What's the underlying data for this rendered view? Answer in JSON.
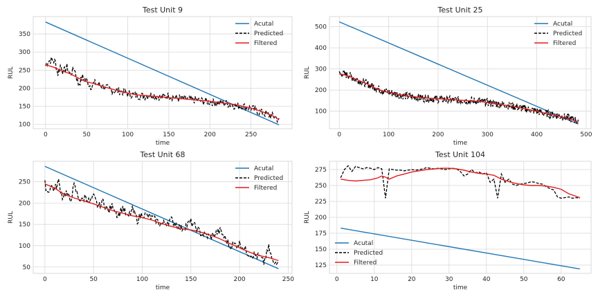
{
  "chart_data": [
    {
      "type": "line",
      "title": "Test Unit 9",
      "xlabel": "time",
      "ylabel": "RUL",
      "xlim": [
        -15,
        300
      ],
      "ylim": [
        88,
        398
      ],
      "xticks": [
        0,
        50,
        100,
        150,
        200,
        250
      ],
      "yticks": [
        100,
        150,
        200,
        250,
        300,
        350
      ],
      "grid": true,
      "legend": "top-right",
      "n": 285,
      "series": [
        {
          "name": "Acutal",
          "color": "#1f77b4",
          "style": "solid",
          "x": [
            0,
            284
          ],
          "y": [
            383,
            99
          ]
        },
        {
          "name": "Predicted",
          "color": "#000000",
          "style": "dashed",
          "x": [
            0,
            3,
            8,
            12,
            15,
            18,
            22,
            26,
            30,
            35,
            40,
            45,
            50,
            55,
            60,
            70,
            80,
            90,
            100,
            110,
            120,
            130,
            140,
            150,
            160,
            170,
            180,
            190,
            200,
            210,
            220,
            230,
            240,
            250,
            260,
            270,
            280,
            284
          ],
          "y": [
            262,
            275,
            278,
            272,
            240,
            262,
            245,
            258,
            238,
            255,
            210,
            230,
            220,
            205,
            215,
            205,
            195,
            192,
            185,
            180,
            178,
            182,
            175,
            180,
            172,
            170,
            168,
            165,
            162,
            160,
            158,
            152,
            150,
            145,
            135,
            128,
            120,
            110
          ]
        },
        {
          "name": "Filtered",
          "color": "#e31a1c",
          "style": "solid",
          "x": [
            0,
            10,
            20,
            30,
            40,
            50,
            60,
            70,
            80,
            90,
            100,
            110,
            120,
            130,
            140,
            150,
            160,
            170,
            180,
            190,
            200,
            210,
            220,
            230,
            240,
            250,
            260,
            270,
            280,
            284
          ],
          "y": [
            265,
            258,
            248,
            240,
            228,
            218,
            212,
            205,
            198,
            192,
            187,
            182,
            180,
            178,
            176,
            174,
            172,
            170,
            168,
            166,
            164,
            161,
            158,
            155,
            150,
            145,
            138,
            130,
            120,
            112
          ]
        }
      ]
    },
    {
      "type": "line",
      "title": "Test Unit 25",
      "xlabel": "time",
      "ylabel": "RUL",
      "xlim": [
        -20,
        510
      ],
      "ylim": [
        17,
        548
      ],
      "xticks": [
        0,
        100,
        200,
        300,
        400,
        500
      ],
      "yticks": [
        100,
        200,
        300,
        400,
        500
      ],
      "grid": true,
      "legend": "top-right",
      "n": 485,
      "series": [
        {
          "name": "Acutal",
          "color": "#1f77b4",
          "style": "solid",
          "x": [
            0,
            484
          ],
          "y": [
            523,
            39
          ]
        },
        {
          "name": "Predicted",
          "color": "#000000",
          "style": "dashed",
          "x": [
            0,
            10,
            20,
            30,
            40,
            50,
            60,
            70,
            80,
            90,
            100,
            120,
            140,
            160,
            180,
            200,
            220,
            240,
            260,
            280,
            300,
            320,
            340,
            360,
            380,
            400,
            420,
            440,
            460,
            480,
            484
          ],
          "y": [
            280,
            275,
            270,
            255,
            245,
            235,
            225,
            215,
            205,
            195,
            190,
            178,
            170,
            165,
            160,
            158,
            155,
            152,
            150,
            148,
            142,
            135,
            128,
            120,
            110,
            100,
            88,
            80,
            70,
            58,
            45
          ]
        },
        {
          "name": "Filtered",
          "color": "#e31a1c",
          "style": "solid",
          "x": [
            0,
            10,
            20,
            30,
            40,
            50,
            60,
            70,
            80,
            90,
            100,
            120,
            140,
            160,
            180,
            200,
            220,
            240,
            260,
            280,
            300,
            320,
            340,
            360,
            380,
            400,
            420,
            440,
            460,
            480,
            484
          ],
          "y": [
            275,
            272,
            265,
            255,
            245,
            235,
            225,
            212,
            203,
            195,
            190,
            180,
            172,
            166,
            162,
            159,
            156,
            153,
            150,
            147,
            141,
            134,
            127,
            119,
            110,
            100,
            89,
            80,
            68,
            52,
            45
          ]
        }
      ]
    },
    {
      "type": "line",
      "title": "Test Unit 68",
      "xlabel": "time",
      "ylabel": "RUL",
      "xlim": [
        -12,
        254
      ],
      "ylim": [
        35,
        298
      ],
      "xticks": [
        0,
        50,
        100,
        150,
        200,
        250
      ],
      "yticks": [
        50,
        100,
        150,
        200,
        250
      ],
      "grid": true,
      "legend": "top-right",
      "n": 241,
      "series": [
        {
          "name": "Acutal",
          "color": "#1f77b4",
          "style": "solid",
          "x": [
            0,
            240
          ],
          "y": [
            286,
            46
          ]
        },
        {
          "name": "Predicted",
          "color": "#000000",
          "style": "dashed",
          "x": [
            0,
            3,
            6,
            10,
            14,
            18,
            22,
            26,
            30,
            34,
            38,
            42,
            46,
            50,
            55,
            60,
            65,
            70,
            75,
            80,
            85,
            90,
            95,
            100,
            110,
            120,
            130,
            140,
            150,
            160,
            170,
            180,
            190,
            200,
            210,
            220,
            225,
            230,
            235,
            240
          ],
          "y": [
            245,
            225,
            240,
            232,
            250,
            215,
            225,
            205,
            240,
            215,
            205,
            218,
            200,
            215,
            190,
            205,
            180,
            195,
            170,
            190,
            165,
            185,
            160,
            175,
            165,
            150,
            160,
            140,
            155,
            130,
            120,
            135,
            100,
            105,
            80,
            75,
            60,
            95,
            55,
            70
          ]
        },
        {
          "name": "Filtered",
          "color": "#e31a1c",
          "style": "solid",
          "x": [
            0,
            10,
            20,
            30,
            40,
            50,
            60,
            70,
            80,
            90,
            100,
            110,
            120,
            130,
            140,
            150,
            160,
            170,
            180,
            190,
            200,
            210,
            220,
            230,
            240
          ],
          "y": [
            245,
            235,
            220,
            212,
            205,
            198,
            190,
            182,
            176,
            170,
            166,
            160,
            152,
            145,
            140,
            137,
            132,
            125,
            116,
            105,
            95,
            85,
            77,
            72,
            65
          ]
        }
      ]
    },
    {
      "type": "line",
      "title": "Test Unit 104",
      "xlabel": "time",
      "ylabel": "RUL",
      "xlim": [
        -2,
        68
      ],
      "ylim": [
        112,
        288
      ],
      "xticks": [
        0,
        10,
        20,
        30,
        40,
        50,
        60
      ],
      "yticks": [
        125,
        150,
        175,
        200,
        225,
        250,
        275
      ],
      "grid": true,
      "legend": "lower-left",
      "n": 65,
      "series": [
        {
          "name": "Acutal",
          "color": "#1f77b4",
          "style": "solid",
          "x": [
            1,
            65
          ],
          "y": [
            183,
            119
          ]
        },
        {
          "name": "Predicted",
          "color": "#000000",
          "style": "dashed",
          "x": [
            1,
            2,
            3,
            4,
            5,
            6,
            7,
            8,
            9,
            10,
            11,
            12,
            13,
            14,
            15,
            16,
            17,
            18,
            19,
            20,
            21,
            22,
            23,
            24,
            25,
            26,
            27,
            28,
            29,
            30,
            31,
            32,
            33,
            34,
            35,
            36,
            37,
            38,
            39,
            40,
            41,
            42,
            43,
            44,
            45,
            46,
            47,
            48,
            49,
            50,
            51,
            52,
            53,
            54,
            55,
            56,
            57,
            58,
            59,
            60,
            61,
            62,
            63,
            64,
            65
          ],
          "y": [
            262,
            275,
            281,
            272,
            280,
            278,
            276,
            278,
            277,
            275,
            278,
            276,
            230,
            276,
            275,
            274,
            274,
            273,
            274,
            275,
            274,
            275,
            276,
            278,
            277,
            276,
            277,
            276,
            275,
            276,
            277,
            276,
            272,
            265,
            268,
            275,
            270,
            271,
            268,
            270,
            255,
            260,
            230,
            268,
            255,
            260,
            252,
            250,
            252,
            253,
            254,
            256,
            255,
            253,
            252,
            248,
            245,
            243,
            232,
            230,
            231,
            232,
            230,
            231,
            230
          ]
        },
        {
          "name": "Filtered",
          "color": "#e31a1c",
          "style": "solid",
          "x": [
            1,
            3,
            5,
            7,
            9,
            11,
            12,
            13,
            14,
            16,
            18,
            20,
            22,
            24,
            26,
            28,
            30,
            32,
            34,
            36,
            38,
            40,
            42,
            44,
            46,
            48,
            50,
            52,
            54,
            56,
            58,
            60,
            62,
            64,
            65
          ],
          "y": [
            260,
            258,
            257,
            258,
            259,
            262,
            265,
            263,
            260,
            265,
            268,
            271,
            273,
            275,
            276,
            277,
            277,
            276,
            274,
            271,
            269,
            268,
            266,
            260,
            256,
            253,
            251,
            250,
            250,
            249,
            247,
            244,
            237,
            233,
            231
          ]
        }
      ]
    }
  ]
}
